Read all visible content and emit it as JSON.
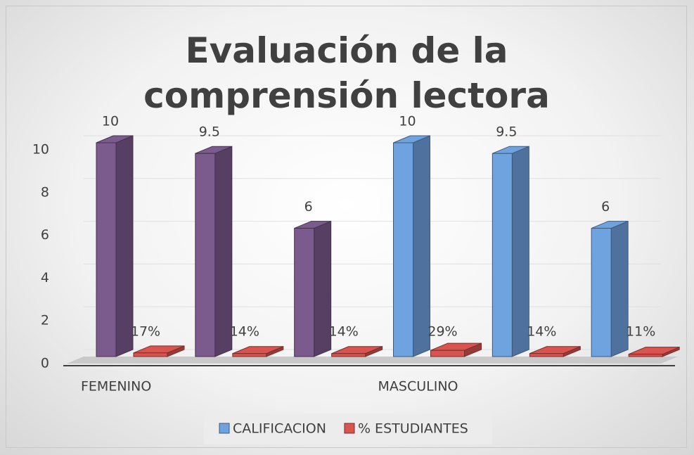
{
  "chart_data": {
    "type": "bar3d",
    "title": "Evaluación de la comprensión lectora",
    "categories": [
      "FEMENINO",
      null,
      null,
      "MASCULINO",
      null,
      null
    ],
    "series": [
      {
        "name": "CALIFICACION",
        "color": "#6fa3e0",
        "point_colors": [
          "#7b5a8d",
          "#7b5a8d",
          "#7b5a8d",
          "#6fa3e0",
          "#6fa3e0",
          "#6fa3e0"
        ],
        "values": [
          10,
          9.5,
          6,
          10,
          9.5,
          6
        ]
      },
      {
        "name": "% ESTUDIANTES",
        "color": "#d9534f",
        "values": [
          0.17,
          0.14,
          0.14,
          0.29,
          0.14,
          0.11
        ],
        "value_labels": [
          "17%",
          "14%",
          "14%",
          "29%",
          "14%",
          "11%"
        ]
      }
    ],
    "ylim": [
      0,
      10
    ],
    "yticks": [
      0,
      2,
      4,
      6,
      8,
      10
    ],
    "grid": true,
    "legend": "bottom"
  }
}
